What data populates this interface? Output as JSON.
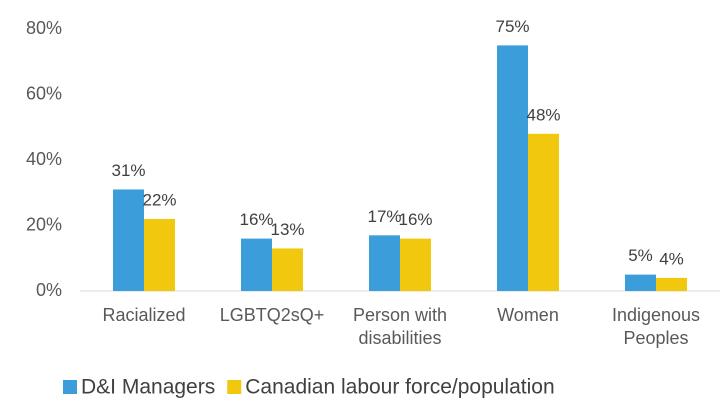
{
  "chart_data": {
    "type": "bar",
    "categories": [
      "Racialized",
      "LGBTQ2sQ+",
      "Person with disabilities",
      "Women",
      "Indigenous Peoples"
    ],
    "series": [
      {
        "name": "D&I Managers",
        "color": "#3c9ddb",
        "values": [
          31,
          16,
          17,
          75,
          5
        ],
        "value_labels": [
          "31%",
          "16%",
          "17%",
          "75%",
          "5%"
        ]
      },
      {
        "name": "Canadian labour force/population",
        "color": "#f2c80f",
        "values": [
          22,
          13,
          16,
          48,
          4
        ],
        "value_labels": [
          "22%",
          "13%",
          "16%",
          "48%",
          "4%"
        ]
      }
    ],
    "ylim": [
      0,
      80
    ],
    "yticks": [
      {
        "value": 0,
        "label": "0%"
      },
      {
        "value": 20,
        "label": "20%"
      },
      {
        "value": 40,
        "label": "40%"
      },
      {
        "value": 60,
        "label": "60%"
      },
      {
        "value": 80,
        "label": "80%"
      }
    ],
    "grid": false,
    "legend": "bottom"
  }
}
